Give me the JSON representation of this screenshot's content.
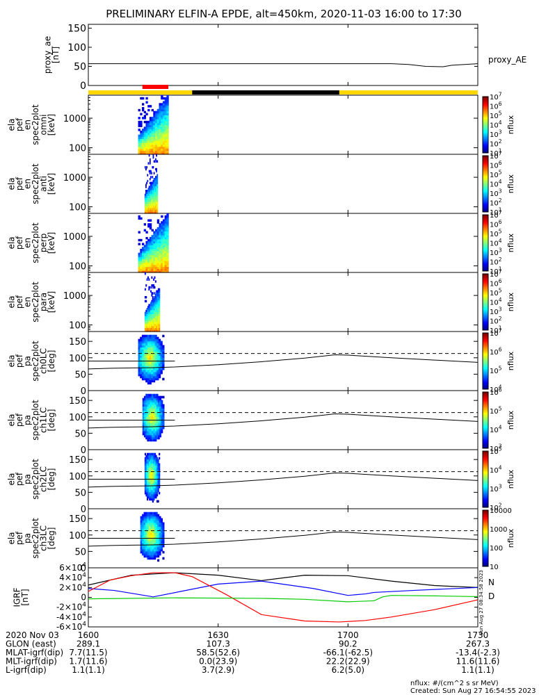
{
  "title": "PRELIMINARY ELFIN-A EPDE, alt=450km, 2020-11-03 16:00 to 17:30",
  "colors": {
    "status_yellow": "#ffd700",
    "status_black": "#000000",
    "science_zone_red": "#ff0000",
    "bn": "#0000ff",
    "bd": "#ff0000",
    "be": "#00cc00",
    "bt": "#000000"
  },
  "chart_data": [
    {
      "type": "line",
      "panel": "proxy_ae",
      "ylabel_lines": [
        "proxy_ae",
        "[nT]"
      ],
      "right_label": "proxy_AE",
      "ylim": [
        0,
        160
      ],
      "yticks": [
        "0",
        "50",
        "100",
        "150"
      ],
      "ytick_values": [
        0,
        50,
        100,
        150
      ],
      "series": [
        {
          "x_min": [
            0,
            70,
            74,
            78,
            82,
            84,
            90
          ],
          "values": [
            57,
            57,
            55,
            50,
            49,
            53,
            57
          ]
        }
      ]
    },
    {
      "type": "status-bar",
      "segments": [
        {
          "from": 0,
          "to": 24,
          "color": "yellow"
        },
        {
          "from": 24,
          "to": 58,
          "color": "black"
        },
        {
          "from": 58,
          "to": 90,
          "color": "yellow"
        }
      ],
      "science_zone": {
        "from": 12.5,
        "to": 18.5
      }
    },
    {
      "type": "heatmap",
      "panel": "spec-omni",
      "ylabel_lines": [
        "ela",
        "pef",
        "en",
        "spec2plot",
        "omni",
        "[keV]"
      ],
      "yscale": "log",
      "ylim": [
        60,
        6000
      ],
      "yticks": [
        "100",
        "1000"
      ],
      "ytick_values": [
        100,
        1000
      ],
      "t_range_min": [
        11.5,
        18.5
      ],
      "colorbar": {
        "ticks": [
          "10^1",
          "10^2",
          "10^3",
          "10^4",
          "10^5",
          "10^6",
          "10^7"
        ],
        "label": "nflux"
      }
    },
    {
      "type": "heatmap",
      "panel": "spec-anti",
      "ylabel_lines": [
        "ela",
        "pef",
        "en",
        "spec2plot",
        "anti",
        "[keV]"
      ],
      "yscale": "log",
      "ylim": [
        60,
        6000
      ],
      "yticks": [
        "100",
        "1000"
      ],
      "ytick_values": [
        100,
        1000
      ],
      "t_range_min": [
        13,
        16
      ],
      "colorbar": {
        "ticks": [
          "10^1",
          "10^2",
          "10^3",
          "10^4",
          "10^5",
          "10^6",
          "10^7"
        ],
        "label": "nflux"
      }
    },
    {
      "type": "heatmap",
      "panel": "spec-perp",
      "ylabel_lines": [
        "ela",
        "pef",
        "en",
        "spec2plot",
        "perp",
        "[keV]"
      ],
      "yscale": "log",
      "ylim": [
        60,
        6000
      ],
      "yticks": [
        "100",
        "1000"
      ],
      "ytick_values": [
        100,
        1000
      ],
      "t_range_min": [
        11.5,
        18.5
      ],
      "colorbar": {
        "ticks": [
          "10^1",
          "10^2",
          "10^3",
          "10^4",
          "10^5",
          "10^6",
          "10^7"
        ],
        "label": "nflux"
      }
    },
    {
      "type": "heatmap",
      "panel": "spec-para",
      "ylabel_lines": [
        "ela",
        "pef",
        "en",
        "spec2plot",
        "para",
        "[keV]"
      ],
      "yscale": "log",
      "ylim": [
        60,
        6000
      ],
      "yticks": [
        "100",
        "1000"
      ],
      "ytick_values": [
        100,
        1000
      ],
      "t_range_min": [
        13,
        16.5
      ],
      "colorbar": {
        "ticks": [
          "10^1",
          "10^2",
          "10^3",
          "10^4",
          "10^5",
          "10^6",
          "10^7"
        ],
        "label": "nflux"
      }
    },
    {
      "type": "heatmap",
      "panel": "pa-ch0",
      "ylabel_lines": [
        "ela",
        "pef",
        "pa",
        "spec2plot",
        "ch0LC",
        "[deg]"
      ],
      "ylim": [
        0,
        180
      ],
      "yticks": [
        "0",
        "50",
        "100",
        "150"
      ],
      "ytick_values": [
        0,
        50,
        100,
        150
      ],
      "t_range_min": [
        11.5,
        17.5
      ],
      "lc_solid": {
        "x_min": [
          0,
          5,
          10,
          15,
          20,
          30,
          40,
          50,
          57,
          60,
          70,
          80,
          90
        ],
        "deg": [
          66,
          68,
          69,
          70,
          72,
          79,
          88,
          99,
          109,
          108,
          100,
          93,
          86
        ]
      },
      "lc_dashed": 113,
      "line_90": 90,
      "colorbar": {
        "ticks": [
          "10^4",
          "10^5",
          "10^6",
          "10^7"
        ],
        "label": "nflux"
      }
    },
    {
      "type": "heatmap",
      "panel": "pa-ch1",
      "ylabel_lines": [
        "ela",
        "pef",
        "pa",
        "spec2plot",
        "ch1LC",
        "[deg]"
      ],
      "ylim": [
        0,
        180
      ],
      "yticks": [
        "0",
        "50",
        "100",
        "150"
      ],
      "ytick_values": [
        0,
        50,
        100,
        150
      ],
      "t_range_min": [
        12.5,
        17.5
      ],
      "lc_solid": {
        "x_min": [
          0,
          5,
          10,
          15,
          20,
          30,
          40,
          50,
          57,
          60,
          70,
          80,
          90
        ],
        "deg": [
          66,
          68,
          69,
          70,
          72,
          79,
          88,
          99,
          109,
          108,
          100,
          93,
          86
        ]
      },
      "lc_dashed": 113,
      "line_90": 90,
      "colorbar": {
        "ticks": [
          "10^3",
          "10^4",
          "10^5",
          "10^6"
        ],
        "label": "nflux"
      }
    },
    {
      "type": "heatmap",
      "panel": "pa-ch2",
      "ylabel_lines": [
        "ela",
        "pef",
        "pa",
        "spec2plot",
        "ch2LC",
        "[deg]"
      ],
      "ylim": [
        0,
        180
      ],
      "yticks": [
        "0",
        "50",
        "100",
        "150"
      ],
      "ytick_values": [
        0,
        50,
        100,
        150
      ],
      "t_range_min": [
        13,
        16.5
      ],
      "lc_solid": {
        "x_min": [
          0,
          5,
          10,
          15,
          20,
          30,
          40,
          50,
          57,
          60,
          70,
          80,
          90
        ],
        "deg": [
          66,
          68,
          69,
          70,
          72,
          79,
          88,
          99,
          109,
          108,
          100,
          93,
          86
        ]
      },
      "lc_dashed": 113,
      "line_90": 90,
      "colorbar": {
        "ticks": [
          "10^2",
          "10^3",
          "10^4",
          "10^5"
        ],
        "label": "nflux"
      }
    },
    {
      "type": "heatmap",
      "panel": "pa-ch3",
      "ylabel_lines": [
        "ela",
        "pef",
        "pa",
        "spec2plot",
        "ch3LC",
        "[deg]"
      ],
      "ylim": [
        0,
        180
      ],
      "yticks": [
        "0",
        "50",
        "100",
        "150"
      ],
      "ytick_values": [
        0,
        50,
        100,
        150
      ],
      "t_range_min": [
        12,
        17.5
      ],
      "lc_solid": {
        "x_min": [
          0,
          5,
          10,
          15,
          20,
          30,
          40,
          50,
          57,
          60,
          70,
          80,
          90
        ],
        "deg": [
          66,
          68,
          69,
          70,
          72,
          79,
          88,
          99,
          109,
          108,
          100,
          93,
          86
        ]
      },
      "lc_dashed": 113,
      "line_90": 90,
      "colorbar": {
        "ticks": [
          "10",
          "100",
          "1000",
          "10000"
        ],
        "label": "nflux"
      }
    },
    {
      "type": "line",
      "panel": "igrf",
      "ylabel_lines": [
        "IGRF",
        "[nT]"
      ],
      "ylim": [
        -60000,
        60000
      ],
      "yticks": [
        "-6×10^4",
        "-4×10^4",
        "-2×10^4",
        "0",
        "2×10^4",
        "4×10^4",
        "6×10^4"
      ],
      "ytick_values": [
        -60000,
        -40000,
        -20000,
        0,
        20000,
        40000,
        60000
      ],
      "legend": [
        "N",
        "D"
      ],
      "series": [
        {
          "color": "black",
          "x_min": [
            0,
            10,
            20,
            30,
            40,
            50,
            60,
            70,
            80,
            90
          ],
          "values": [
            25000,
            45000,
            50000,
            45000,
            34000,
            45000,
            44000,
            33000,
            24000,
            20000
          ]
        },
        {
          "color": "blue",
          "x_min": [
            0,
            6,
            15,
            30,
            40,
            52,
            60,
            64,
            66,
            75,
            90
          ],
          "values": [
            18000,
            14000,
            1000,
            27000,
            33000,
            18000,
            4000,
            7000,
            10000,
            14000,
            20000
          ]
        },
        {
          "color": "red",
          "x_min": [
            0,
            5,
            10,
            15,
            20,
            24,
            32,
            40,
            50,
            58,
            64,
            70,
            80,
            90
          ],
          "values": [
            12000,
            35000,
            44000,
            50000,
            50000,
            42000,
            5000,
            -35000,
            -48000,
            -50000,
            -47000,
            -40000,
            -25000,
            -5000
          ]
        },
        {
          "color": "green",
          "x_min": [
            0,
            20,
            40,
            50,
            60,
            66,
            68,
            70,
            80,
            90
          ],
          "values": [
            -3000,
            -1000,
            -2000,
            -4000,
            -9000,
            -7000,
            1000,
            4000,
            3000,
            1500
          ]
        }
      ]
    }
  ],
  "time_axis": {
    "tick_labels": [
      "1600",
      "1630",
      "1700",
      "1730"
    ],
    "tick_minutes": [
      0,
      30,
      60,
      90
    ],
    "rows": [
      {
        "label": "2020 Nov 03",
        "values": [
          "1600",
          "1630",
          "1700",
          "1730"
        ]
      },
      {
        "label": "GLON (east)",
        "values": [
          "289.1",
          "107.3",
          "90.2",
          "267.3"
        ]
      },
      {
        "label": "MLAT-igrf(dip)",
        "values": [
          "7.7(11.5)",
          "58.5(52.6)",
          "-66.1(-62.5)",
          "-13.4(-2.3)"
        ]
      },
      {
        "label": "MLT-igrf(dip)",
        "values": [
          "1.7(11.6)",
          "0.0(23.9)",
          "22.2(22.9)",
          "11.6(11.6)"
        ]
      },
      {
        "label": "L-igrf(dip)",
        "values": [
          "1.1(1.1)",
          "3.7(2.9)",
          "6.2(5.0)",
          "1.1(1.1)"
        ]
      }
    ]
  },
  "side_stamp": "Sun Aug 27 08:34:58 2023",
  "footer": {
    "units": "nflux: #/(cm^2 s sr MeV)",
    "created": "Created: Sun Aug 27 16:54:55 2023"
  }
}
